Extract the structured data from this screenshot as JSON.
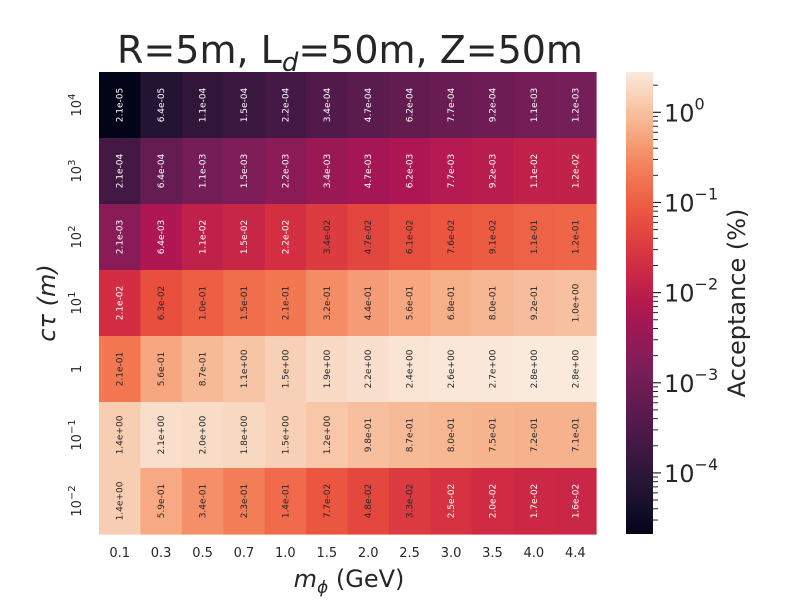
{
  "chart_data": {
    "type": "heatmap",
    "title": "R=5m, L",
    "title_sub": "d",
    "title_rest": "=50m, Z=50m",
    "xlabel_sym": "m",
    "xlabel_sub": "ϕ",
    "xlabel_unit": " (GeV)",
    "ylabel": "cτ (m)",
    "x_categories": [
      "0.1",
      "0.3",
      "0.5",
      "0.7",
      "1.0",
      "1.5",
      "2.0",
      "2.5",
      "3.0",
      "3.5",
      "4.0",
      "4.4"
    ],
    "y_categories": [
      {
        "base": "10",
        "exp": "4"
      },
      {
        "base": "10",
        "exp": "3"
      },
      {
        "base": "10",
        "exp": "2"
      },
      {
        "base": "10",
        "exp": "1"
      },
      {
        "base": "1",
        "exp": ""
      },
      {
        "base": "10",
        "exp": "−1"
      },
      {
        "base": "10",
        "exp": "−2"
      }
    ],
    "values": [
      [
        "2.1e-05",
        "6.4e-05",
        "1.1e-04",
        "1.5e-04",
        "2.2e-04",
        "3.4e-04",
        "4.7e-04",
        "6.2e-04",
        "7.7e-04",
        "9.2e-04",
        "1.1e-03",
        "1.2e-03"
      ],
      [
        "2.1e-04",
        "6.4e-04",
        "1.1e-03",
        "1.5e-03",
        "2.2e-03",
        "3.4e-03",
        "4.7e-03",
        "6.2e-03",
        "7.7e-03",
        "9.2e-03",
        "1.1e-02",
        "1.2e-02"
      ],
      [
        "2.1e-03",
        "6.4e-03",
        "1.1e-02",
        "1.5e-02",
        "2.2e-02",
        "3.4e-02",
        "4.7e-02",
        "6.1e-02",
        "7.6e-02",
        "9.1e-02",
        "1.1e-01",
        "1.2e-01"
      ],
      [
        "2.1e-02",
        "6.3e-02",
        "1.0e-01",
        "1.5e-01",
        "2.1e-01",
        "3.2e-01",
        "4.4e-01",
        "5.6e-01",
        "6.8e-01",
        "8.0e-01",
        "9.2e-01",
        "1.0e+00"
      ],
      [
        "2.1e-01",
        "5.6e-01",
        "8.7e-01",
        "1.1e+00",
        "1.5e+00",
        "1.9e+00",
        "2.2e+00",
        "2.4e+00",
        "2.6e+00",
        "2.7e+00",
        "2.8e+00",
        "2.8e+00"
      ],
      [
        "1.4e+00",
        "2.1e+00",
        "2.0e+00",
        "1.8e+00",
        "1.5e+00",
        "1.2e+00",
        "9.8e-01",
        "8.7e-01",
        "8.0e-01",
        "7.5e-01",
        "7.2e-01",
        "7.1e-01"
      ],
      [
        "1.4e+00",
        "5.9e-01",
        "3.4e-01",
        "2.3e-01",
        "1.4e-01",
        "7.7e-02",
        "4.8e-02",
        "3.3e-02",
        "2.5e-02",
        "2.0e-02",
        "1.7e-02",
        "1.6e-02"
      ]
    ],
    "colorbar": {
      "label": "Acceptance (%)",
      "scale": "log",
      "range": [
        2.1e-05,
        2.8
      ],
      "ticks": [
        {
          "base": "10",
          "exp": "0"
        },
        {
          "base": "10",
          "exp": "−1"
        },
        {
          "base": "10",
          "exp": "−2"
        },
        {
          "base": "10",
          "exp": "−3"
        },
        {
          "base": "10",
          "exp": "−4"
        }
      ],
      "colormap": "rocket"
    },
    "grid": false
  }
}
